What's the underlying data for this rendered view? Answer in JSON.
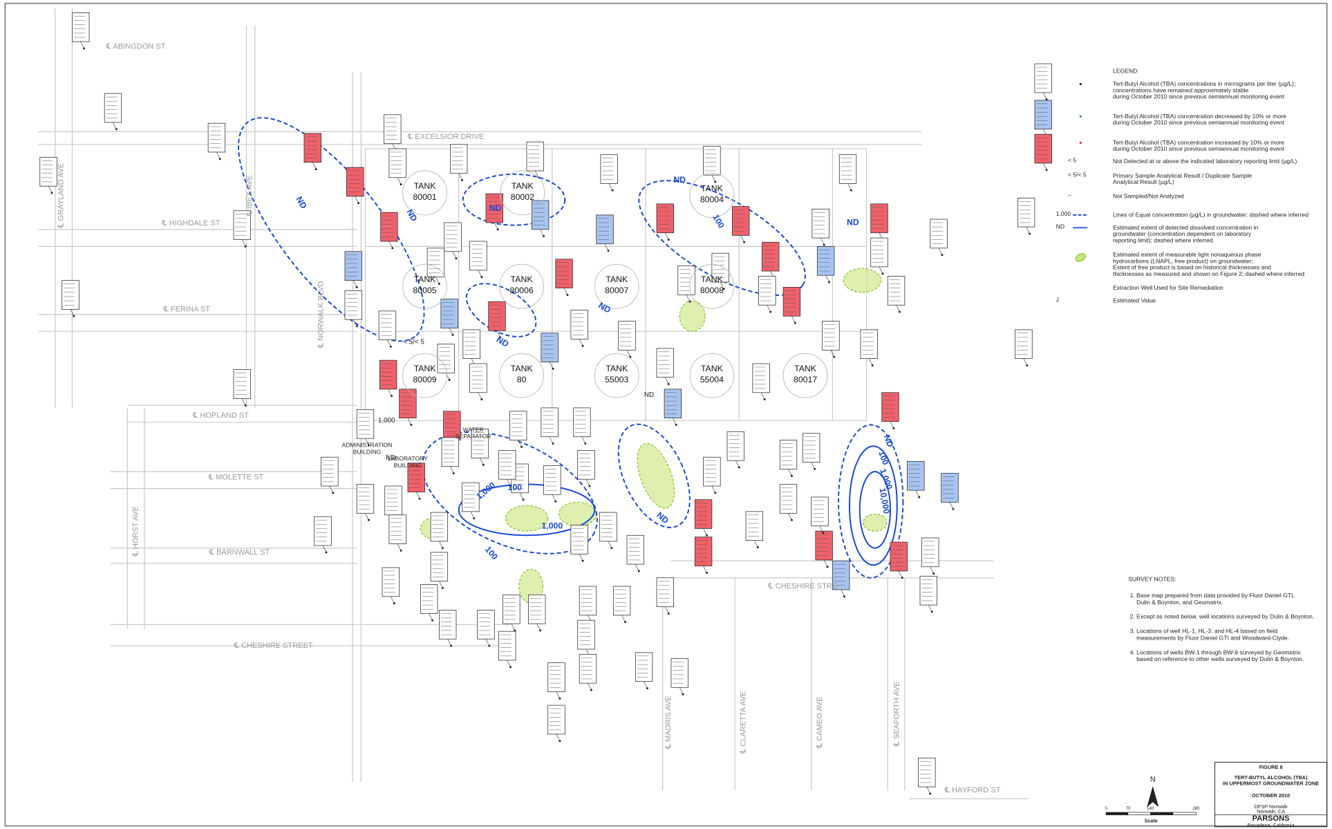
{
  "streets": [
    "℄ ABINGDON ST",
    "℄ EXCELSIOR DRIVE",
    "℄ HIGHDALE ST",
    "℄ FERINA ST",
    "℄ HOPLAND ST",
    "℄ MOLETTE ST",
    "℄ BARNWALL ST",
    "℄ CHESHIRE STREET",
    "℄ CHESHIRE STRE",
    "℄ HAYFORD ST",
    "℄ GRAYLAND AVE",
    "℄ IBEX AVE",
    "℄ NORWALK BLVD",
    "℄ HORST AVE",
    "℄ MADRIS AVE",
    "℄ CLARETTA AVE",
    "℄ CAMEO AVE",
    "℄ SEAFORTH AVE"
  ],
  "tanks": [
    {
      "label": "TANK",
      "id": "80001"
    },
    {
      "label": "TANK",
      "id": "80002"
    },
    {
      "label": "TANK",
      "id": "80004"
    },
    {
      "label": "TANK",
      "id": "80005"
    },
    {
      "label": "TANK",
      "id": "80006"
    },
    {
      "label": "TANK",
      "id": "80007"
    },
    {
      "label": "TANK",
      "id": "80008"
    },
    {
      "label": "TANK",
      "id": "80009"
    },
    {
      "label": "TANK",
      "id": "80"
    },
    {
      "label": "TANK",
      "id": "55003"
    },
    {
      "label": "TANK",
      "id": "55004"
    },
    {
      "label": "TANK",
      "id": "80017"
    }
  ],
  "buildings": [
    [
      "ADMINISTRATION",
      "BUILDING"
    ],
    [
      "LABORATORY",
      "BUILDING"
    ],
    [
      "WATER",
      "SEPARATOR"
    ]
  ],
  "contour_labels": [
    "ND",
    "ND",
    "ND",
    "ND",
    "ND",
    "ND",
    "ND",
    "ND",
    "100",
    "100",
    "100",
    "100",
    "1,000",
    "1,000",
    "1,000",
    "10,000",
    "ND",
    "ND",
    "< 5/< 5",
    "1,000",
    "ND"
  ],
  "legend": {
    "title": "LEGEND",
    "items": [
      {
        "symbol": "",
        "lines": [
          "Tert-Butyl Alcohol (TBA) concentrations in micrograms per liter (µg/L);",
          "concentrations have remained approximately stable",
          "during October 2010 since previous semiannual monitoring event"
        ]
      },
      {
        "symbol": "",
        "lines": [
          "Tert-Butyl Alcohol (TBA) concentration decreased by 10% or more",
          "during October 2010 since previous semiannual monitoring event"
        ]
      },
      {
        "symbol": "",
        "lines": [
          "Tert-Butyl Alcohol (TBA) concentration increased by 10% or more",
          "during October 2010 since previous semiannual monitoring event"
        ]
      },
      {
        "symbol": "< 5",
        "lines": [
          "Not Detected at or above the indicated laboratory reporting limit (µg/L)"
        ]
      },
      {
        "symbol": "< 5/< 5",
        "lines": [
          "Primary Sample Analytical Result / Duplicate Sample",
          "Analytical Result (µg/L)"
        ]
      },
      {
        "symbol": "–",
        "lines": [
          "Not Sampled/Not Analyzed"
        ]
      },
      {
        "symbol": "1,000",
        "lines": [
          "Lines of Equal concentration (µg/L) in groundwater; dashed where inferred"
        ]
      },
      {
        "symbol": "ND",
        "lines": [
          "Estimated extent of detected dissolved concentration in",
          "groundwater (concentration dependent on laboratory",
          "reporting limit); dashed where inferred"
        ]
      },
      {
        "symbol": "",
        "lines": [
          "Estimated extent of measurable light nonaqueous phase",
          "hydrocarbons (LNAPL, free product) on groundwater;",
          "Extent of free product is based on historical thicknesses and",
          "thicknesses as measured and shown on Figure 2; dashed where inferred"
        ]
      },
      {
        "symbol": "",
        "lines": [
          "Extraction Well Used for Site Remediation"
        ]
      },
      {
        "symbol": "J",
        "lines": [
          "Estimated Value"
        ]
      }
    ]
  },
  "survey_notes": {
    "title": "SURVEY NOTES:",
    "notes": [
      [
        "1. Base map prepared from data provided by Fluor Daniel GTI,",
        "    Dulin & Boynton, and Geomatrix."
      ],
      [
        "2. Except as noted below, well locations surveyed by Dulin & Boynton."
      ],
      [
        "3. Locations of well HL-1, HL-3, and HL-4 based on field",
        "    measurements by Fluor Daniel GTI and Woodward-Clyde."
      ],
      [
        "4. Locations of wells BW-1 through BW-9 surveyed by Geomatrix",
        "    based on reference to other wells surveyed by Dulin & Boynton."
      ]
    ]
  },
  "title_block": {
    "figure": "FIGURE 8",
    "title": [
      "TERT-BUTYL ALCOHOL (TBA)",
      "IN UPPERMOST GROUNDWATER ZONE"
    ],
    "date": "OCTOBER 2010",
    "site": "DFSP Norwalk",
    "location": "Norwalk, CA",
    "company": "PARSONS",
    "city": "Pasadena, California"
  },
  "scale": {
    "label": "Scale",
    "ticks": [
      "0",
      "70",
      "140",
      "280"
    ]
  },
  "north": "N"
}
